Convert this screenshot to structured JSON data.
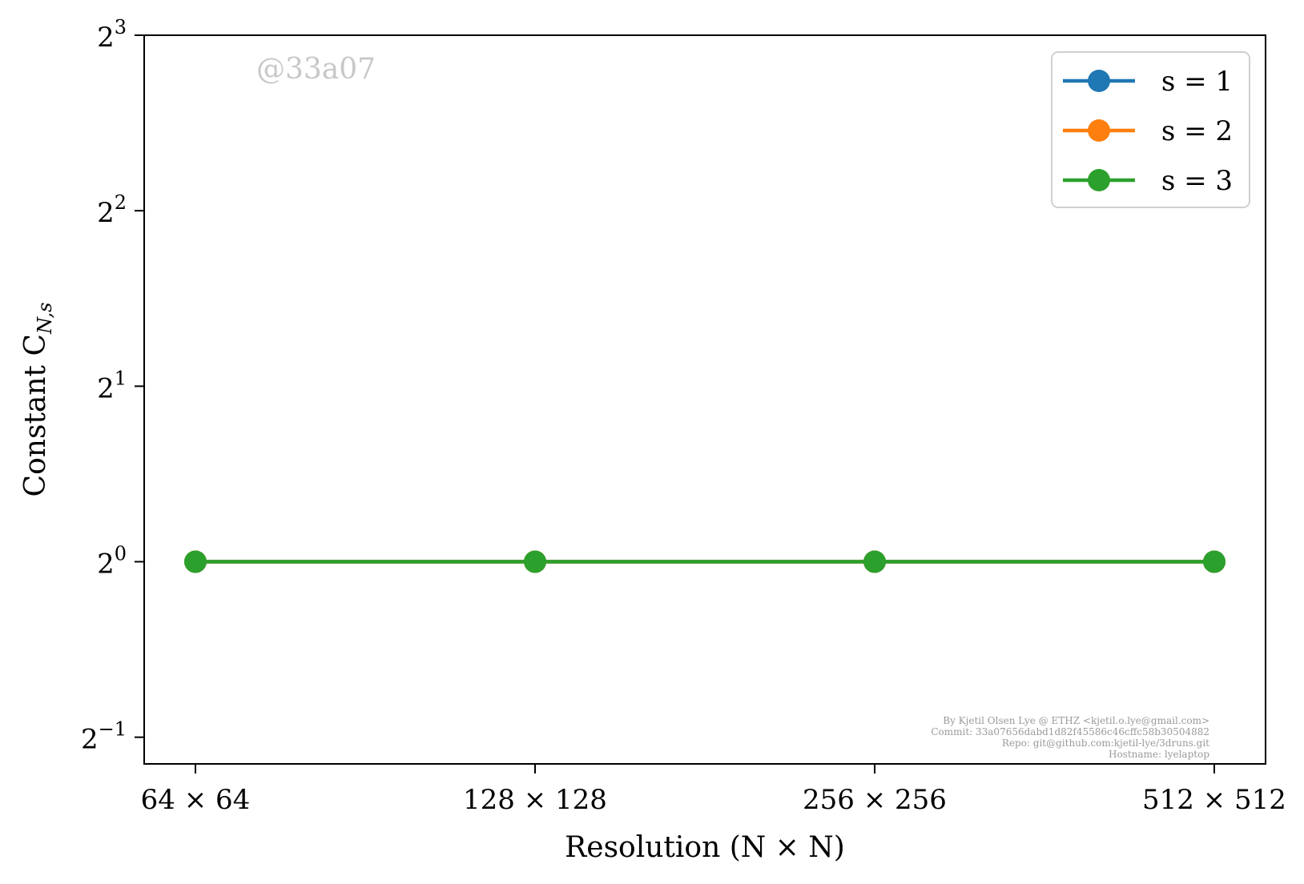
{
  "chart_data": {
    "type": "line",
    "xlabel": "Resolution (N × N)",
    "ylabel": "Constant C",
    "ylabel_subscript": "N,s",
    "categories": [
      "64 × 64",
      "128 × 128",
      "256 × 256",
      "512 × 512"
    ],
    "y_scale": "log2",
    "ylim": [
      0.45,
      8
    ],
    "y_ticks": [
      {
        "value": 0.5,
        "base": "2",
        "exp": "−1"
      },
      {
        "value": 1,
        "base": "2",
        "exp": "0"
      },
      {
        "value": 2,
        "base": "2",
        "exp": "1"
      },
      {
        "value": 4,
        "base": "2",
        "exp": "2"
      },
      {
        "value": 8,
        "base": "2",
        "exp": "3"
      }
    ],
    "series": [
      {
        "name": "s = 1",
        "color": "#1f77b4",
        "values": [
          1,
          1,
          1,
          1
        ]
      },
      {
        "name": "s = 2",
        "color": "#ff7f0e",
        "values": [
          1,
          1,
          1,
          1
        ]
      },
      {
        "name": "s = 3",
        "color": "#2ca02c",
        "values": [
          1,
          1,
          1,
          1
        ]
      }
    ],
    "legend_position": "top-right",
    "grid": false,
    "annotations": {
      "watermark": "@33a07",
      "credits": [
        "By Kjetil Olsen Lye @ ETHZ <kjetil.o.lye@gmail.com>",
        "Commit: 33a07656dabd1d82f45586c46cffc58b30504882",
        "Repo: git@github.com:kjetil-lye/3druns.git",
        "Hostname: lyelaptop"
      ]
    }
  }
}
